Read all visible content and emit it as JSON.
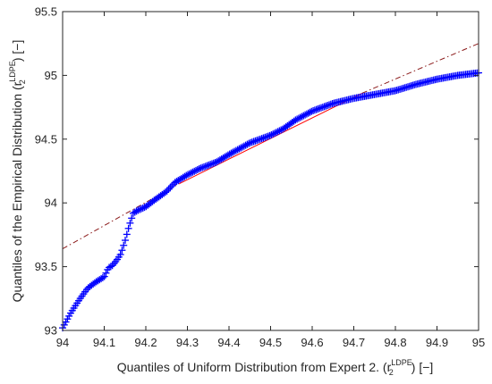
{
  "chart_data": {
    "type": "scatter",
    "title": "",
    "xlabel": {
      "prefix": "Quantiles of Uniform Distribution from Expert 2. (r",
      "sub": "2",
      "sup": "LDPE",
      "suffix": ") [−]"
    },
    "ylabel": {
      "prefix": "Quantiles of the Empirical Distribution (r",
      "sub": "2",
      "sup": "LDPE",
      "suffix": ") [−]"
    },
    "xlim": [
      94,
      95
    ],
    "ylim": [
      93,
      95.5
    ],
    "xticks": [
      "94",
      "94.1",
      "94.2",
      "94.3",
      "94.4",
      "94.5",
      "94.6",
      "94.7",
      "94.8",
      "94.9",
      "95"
    ],
    "yticks": [
      "93",
      "93.5",
      "94",
      "94.5",
      "95",
      "95.5"
    ],
    "grid": false,
    "legend": "none",
    "colors": {
      "marker": "#0000ff",
      "fit_line": "#ff0000",
      "fit_extension": "#8b1a1a",
      "axis": "#262626"
    },
    "marker_symbol": "+",
    "quantile_curve": {
      "x": [
        94.0,
        94.01,
        94.02,
        94.04,
        94.06,
        94.08,
        94.1,
        94.11,
        94.12,
        94.13,
        94.14,
        94.15,
        94.16,
        94.17,
        94.18,
        94.2,
        94.22,
        94.25,
        94.27,
        94.3,
        94.33,
        94.37,
        94.4,
        94.45,
        94.5,
        94.53,
        94.56,
        94.6,
        94.65,
        94.7,
        94.75,
        94.8,
        94.85,
        94.9,
        94.95,
        95.0
      ],
      "y": [
        93.02,
        93.08,
        93.14,
        93.24,
        93.33,
        93.38,
        93.42,
        93.49,
        93.51,
        93.55,
        93.6,
        93.7,
        93.82,
        93.92,
        93.94,
        93.97,
        94.02,
        94.09,
        94.16,
        94.22,
        94.27,
        94.32,
        94.38,
        94.47,
        94.53,
        94.58,
        94.65,
        94.72,
        94.78,
        94.82,
        94.85,
        94.88,
        94.93,
        94.97,
        95.0,
        95.02
      ]
    },
    "fit_line_solid": {
      "x": [
        94.28,
        94.72
      ],
      "y": [
        94.15,
        94.86
      ]
    },
    "fit_line_dashdot": [
      {
        "x": [
          94.0,
          94.28
        ],
        "y": [
          93.64,
          94.15
        ]
      },
      {
        "x": [
          94.72,
          95.0
        ],
        "y": [
          94.86,
          95.25
        ]
      }
    ]
  }
}
